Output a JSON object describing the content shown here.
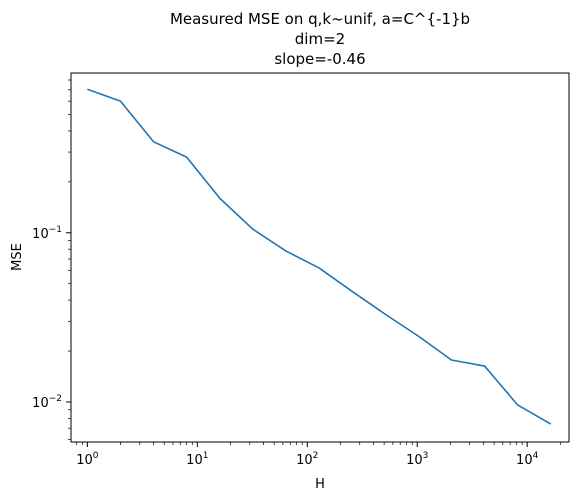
{
  "chart_data": {
    "type": "line",
    "title_lines": [
      "Measured MSE on q,k~unif, a=C^{-1}b",
      "dim=2",
      "slope=-0.46"
    ],
    "xlabel": "H",
    "ylabel": "MSE",
    "xscale": "log",
    "yscale": "log",
    "xlim": [
      0.71,
      24000
    ],
    "ylim": [
      0.0058,
      0.88
    ],
    "grid": false,
    "line_color": "#1f77b4",
    "x_ticks": [
      {
        "value": 1,
        "base": "10",
        "exp": "0"
      },
      {
        "value": 10,
        "base": "10",
        "exp": "1"
      },
      {
        "value": 100,
        "base": "10",
        "exp": "2"
      },
      {
        "value": 1000,
        "base": "10",
        "exp": "3"
      },
      {
        "value": 10000,
        "base": "10",
        "exp": "4"
      }
    ],
    "y_ticks": [
      {
        "value": 0.1,
        "base": "10",
        "exp": "−1"
      },
      {
        "value": 0.01,
        "base": "10",
        "exp": "−2"
      }
    ],
    "series": [
      {
        "x": [
          1,
          2,
          4,
          8,
          16,
          32,
          64,
          128,
          256,
          512,
          1024,
          2048,
          4096,
          8192,
          16384
        ],
        "y": [
          0.705,
          0.6,
          0.345,
          0.28,
          0.16,
          0.105,
          0.078,
          0.062,
          0.045,
          0.033,
          0.0245,
          0.0177,
          0.0163,
          0.0096,
          0.0074
        ]
      }
    ]
  }
}
